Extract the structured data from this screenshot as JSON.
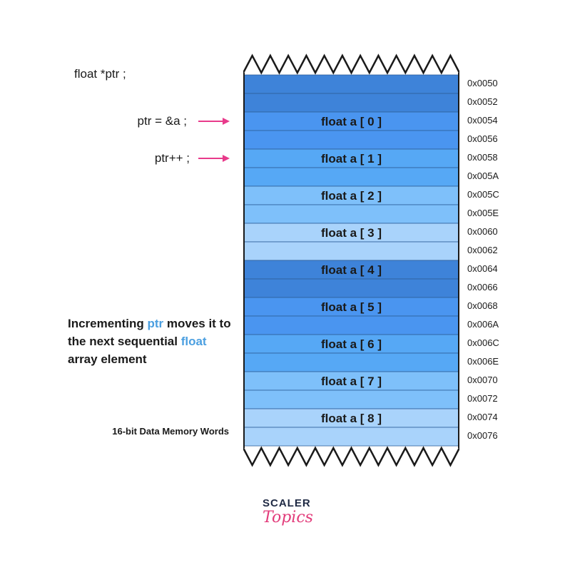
{
  "code": {
    "declaration": "float *ptr ;",
    "assignment": "ptr = &a ;",
    "increment": "ptr++ ;"
  },
  "caption": {
    "part1": "Incrementing ",
    "ptr_word": "ptr",
    "part2": " moves it to the next sequential ",
    "float_word": "float",
    "part3": " array element"
  },
  "memory_label": "16-bit Data Memory Words",
  "colors": {
    "arrow": "#e83a8b",
    "highlight_text": "#4b9fe0",
    "cell_border": "#2d5f9a",
    "frame": "#1a1a1a"
  },
  "memory": {
    "rows": [
      {
        "address": "0x0050",
        "label": "",
        "color": "#3e83d9"
      },
      {
        "address": "0x0052",
        "label": "",
        "color": "#3e83d9"
      },
      {
        "address": "0x0054",
        "label": "float a [ 0 ]",
        "color": "#4a95f0"
      },
      {
        "address": "0x0056",
        "label": "",
        "color": "#4a95f0"
      },
      {
        "address": "0x0058",
        "label": "float a [ 1 ]",
        "color": "#56a8f5"
      },
      {
        "address": "0x005A",
        "label": "",
        "color": "#56a8f5"
      },
      {
        "address": "0x005C",
        "label": "float a [ 2 ]",
        "color": "#7ec0fa"
      },
      {
        "address": "0x005E",
        "label": "",
        "color": "#7ec0fa"
      },
      {
        "address": "0x0060",
        "label": "float a [ 3 ]",
        "color": "#a9d3fb"
      },
      {
        "address": "0x0062",
        "label": "",
        "color": "#a9d3fb"
      },
      {
        "address": "0x0064",
        "label": "float a [ 4 ]",
        "color": "#3e83d9"
      },
      {
        "address": "0x0066",
        "label": "",
        "color": "#3e83d9"
      },
      {
        "address": "0x0068",
        "label": "float a [ 5 ]",
        "color": "#4a95f0"
      },
      {
        "address": "0x006A",
        "label": "",
        "color": "#4a95f0"
      },
      {
        "address": "0x006C",
        "label": "float a [ 6 ]",
        "color": "#56a8f5"
      },
      {
        "address": "0x006E",
        "label": "",
        "color": "#56a8f5"
      },
      {
        "address": "0x0070",
        "label": "float a [ 7 ]",
        "color": "#7ec0fa"
      },
      {
        "address": "0x0072",
        "label": "",
        "color": "#7ec0fa"
      },
      {
        "address": "0x0074",
        "label": "float a [ 8 ]",
        "color": "#a9d3fb"
      },
      {
        "address": "0x0076",
        "label": "",
        "color": "#a9d3fb"
      }
    ]
  },
  "logo": {
    "top": "SCALER",
    "bottom": "Topics"
  }
}
